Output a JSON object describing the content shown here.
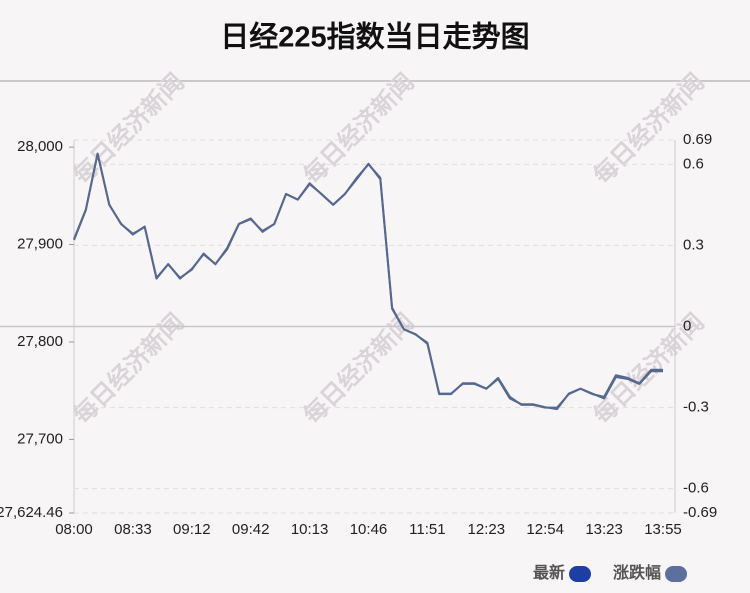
{
  "chart_data": {
    "type": "line",
    "title": "日经225指数当日走势图",
    "watermark": "每日经济新闻",
    "categories": [
      "08:00",
      null,
      null,
      null,
      null,
      "08:33",
      null,
      null,
      null,
      null,
      "09:12",
      null,
      null,
      null,
      null,
      "09:42",
      null,
      null,
      null,
      null,
      "10:13",
      null,
      null,
      null,
      null,
      "10:46",
      null,
      null,
      null,
      null,
      "11:51",
      null,
      null,
      null,
      null,
      "12:23",
      null,
      null,
      null,
      null,
      "12:54",
      null,
      null,
      null,
      null,
      "13:23",
      null,
      null,
      null,
      null,
      "13:55"
    ],
    "series": [
      {
        "name": "最新",
        "color": "#56688f",
        "legend_color": "#1c3fa6",
        "values": [
          27905.6,
          27936,
          27993,
          27941,
          27921,
          27911,
          27918,
          27865,
          27880,
          27865,
          27875,
          27890,
          27880,
          27895,
          27921,
          27926,
          27914,
          27921,
          27952,
          27946,
          27962,
          27952,
          27941,
          27952,
          27967,
          27983,
          27967,
          27834,
          27813,
          27808,
          27798,
          27747,
          27747,
          27757,
          27757,
          27752,
          27762,
          27742,
          27736,
          27736,
          27733,
          27731,
          27747,
          27752,
          27747,
          27742,
          27764,
          27762,
          27757,
          27770,
          27770
        ]
      },
      {
        "name": "涨跌幅",
        "color": "#56688f",
        "legend_color": "#5d6f9c",
        "axis": "y2",
        "values": [
          0.32,
          0.43,
          0.64,
          0.45,
          0.38,
          0.34,
          0.37,
          0.18,
          0.23,
          0.18,
          0.21,
          0.27,
          0.23,
          0.29,
          0.38,
          0.4,
          0.35,
          0.38,
          0.49,
          0.47,
          0.53,
          0.49,
          0.45,
          0.49,
          0.55,
          0.6,
          0.55,
          0.07,
          -0.01,
          -0.03,
          -0.06,
          -0.25,
          -0.25,
          -0.21,
          -0.21,
          -0.23,
          -0.19,
          -0.26,
          -0.29,
          -0.29,
          -0.3,
          -0.3,
          -0.25,
          -0.23,
          -0.25,
          -0.26,
          -0.18,
          -0.19,
          -0.21,
          -0.16,
          -0.16
        ]
      }
    ],
    "ylim": [
      27624.46,
      28007.3
    ],
    "yticks": [
      {
        "value": 28000,
        "label": "28,000"
      },
      {
        "value": 27900,
        "label": "27,900"
      },
      {
        "value": 27800,
        "label": "27,800"
      },
      {
        "value": 27700,
        "label": "27,700"
      },
      {
        "value": 27624.46,
        "label": "27,624.46"
      }
    ],
    "y2lim": [
      -0.69,
      0.69
    ],
    "y2ticks": [
      0.69,
      0.6,
      0.3,
      0,
      -0.3,
      -0.6,
      -0.69
    ],
    "grid": true,
    "legend": "bottom-right"
  }
}
